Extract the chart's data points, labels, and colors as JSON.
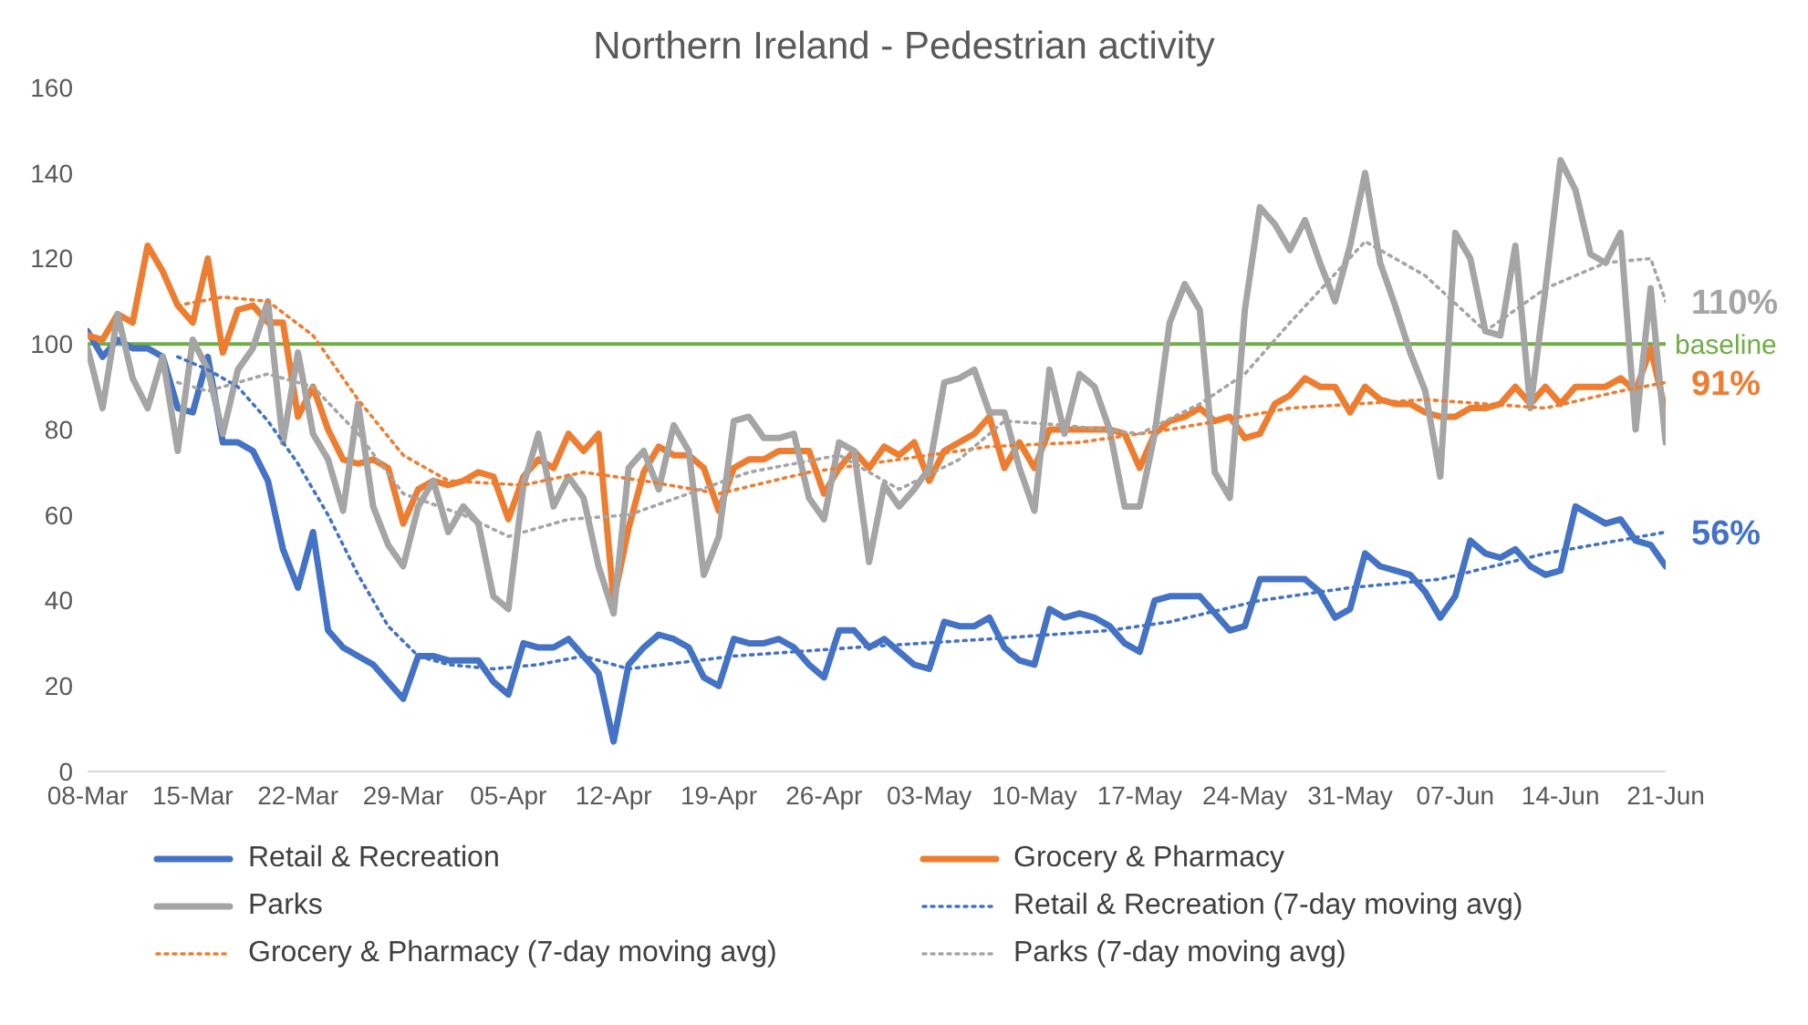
{
  "chart_data": {
    "type": "line",
    "title": "Northern Ireland - Pedestrian activity",
    "legend": "bottom",
    "marker": "none",
    "grid": false,
    "x": [
      "--03-08",
      "--03-09",
      "--03-10",
      "--03-11",
      "--03-12",
      "--03-13",
      "--03-14",
      "--03-15",
      "--03-16",
      "--03-17",
      "--03-18",
      "--03-19",
      "--03-20",
      "--03-21",
      "--03-22",
      "--03-23",
      "--03-24",
      "--03-25",
      "--03-26",
      "--03-27",
      "--03-28",
      "--03-29",
      "--03-30",
      "--03-31",
      "--04-01",
      "--04-02",
      "--04-03",
      "--04-04",
      "--04-05",
      "--04-06",
      "--04-07",
      "--04-08",
      "--04-09",
      "--04-10",
      "--04-11",
      "--04-12",
      "--04-13",
      "--04-14",
      "--04-15",
      "--04-16",
      "--04-17",
      "--04-18",
      "--04-19",
      "--04-20",
      "--04-21",
      "--04-22",
      "--04-23",
      "--04-24",
      "--04-25",
      "--04-26",
      "--04-27",
      "--04-28",
      "--04-29",
      "--04-30",
      "--05-01",
      "--05-02",
      "--05-03",
      "--05-04",
      "--05-05",
      "--05-06",
      "--05-07",
      "--05-08",
      "--05-09",
      "--05-10",
      "--05-11",
      "--05-12",
      "--05-13",
      "--05-14",
      "--05-15",
      "--05-16",
      "--05-17",
      "--05-18",
      "--05-19",
      "--05-20",
      "--05-21",
      "--05-22",
      "--05-23",
      "--05-24",
      "--05-25",
      "--05-26",
      "--05-27",
      "--05-28",
      "--05-29",
      "--05-30",
      "--05-31",
      "--06-01",
      "--06-02",
      "--06-03",
      "--06-04",
      "--06-05",
      "--06-06",
      "--06-07",
      "--06-08",
      "--06-09",
      "--06-10",
      "--06-11",
      "--06-12",
      "--06-13",
      "--06-14",
      "--06-15",
      "--06-16",
      "--06-17",
      "--06-18",
      "--06-19",
      "--06-20",
      "--06-21"
    ],
    "xlim": [
      "--03-08",
      "--06-21"
    ],
    "xticks": [
      {
        "value": "--03-08",
        "label": "08-Mar"
      },
      {
        "value": "--03-15",
        "label": "15-Mar"
      },
      {
        "value": "--03-22",
        "label": "22-Mar"
      },
      {
        "value": "--03-29",
        "label": "29-Mar"
      },
      {
        "value": "--04-05",
        "label": "05-Apr"
      },
      {
        "value": "--04-12",
        "label": "12-Apr"
      },
      {
        "value": "--04-19",
        "label": "19-Apr"
      },
      {
        "value": "--04-26",
        "label": "26-Apr"
      },
      {
        "value": "--05-03",
        "label": "03-May"
      },
      {
        "value": "--05-10",
        "label": "10-May"
      },
      {
        "value": "--05-17",
        "label": "17-May"
      },
      {
        "value": "--05-24",
        "label": "24-May"
      },
      {
        "value": "--05-31",
        "label": "31-May"
      },
      {
        "value": "--06-07",
        "label": "07-Jun"
      },
      {
        "value": "--06-14",
        "label": "14-Jun"
      },
      {
        "value": "--06-21",
        "label": "21-Jun"
      }
    ],
    "ylim": [
      0,
      160
    ],
    "yticks": [
      0,
      20,
      40,
      60,
      80,
      100,
      120,
      140,
      160
    ],
    "series": [
      {
        "name": "Retail & Recreation",
        "color": "#4472c4",
        "line_style": "solid",
        "values": [
          103,
          97,
          101,
          99,
          99,
          97,
          85,
          84,
          97,
          77,
          77,
          75,
          68,
          52,
          43,
          56,
          33,
          29,
          27,
          25,
          21,
          17,
          27,
          27,
          26,
          26,
          26,
          21,
          18,
          30,
          29,
          29,
          31,
          27,
          23,
          7,
          25,
          29,
          32,
          31,
          29,
          22,
          20,
          31,
          30,
          30,
          31,
          29,
          25,
          22,
          33,
          33,
          29,
          31,
          28,
          25,
          24,
          35,
          34,
          34,
          36,
          29,
          26,
          25,
          38,
          36,
          37,
          36,
          34,
          30,
          28,
          40,
          41,
          41,
          41,
          37,
          33,
          34,
          45,
          45,
          45,
          45,
          42,
          36,
          38,
          51,
          48,
          47,
          46,
          42,
          36,
          41,
          54,
          51,
          50,
          52,
          48,
          46,
          47,
          62,
          60,
          58,
          59,
          54,
          53,
          48
        ]
      },
      {
        "name": "Grocery & Pharmacy",
        "color": "#ed7d31",
        "line_style": "solid",
        "values": [
          102,
          101,
          107,
          105,
          123,
          117,
          109,
          105,
          120,
          98,
          108,
          109,
          105,
          105,
          83,
          90,
          80,
          73,
          72,
          73,
          71,
          58,
          66,
          68,
          67,
          68,
          70,
          69,
          59,
          69,
          73,
          71,
          79,
          75,
          79,
          40,
          57,
          70,
          76,
          74,
          74,
          71,
          61,
          71,
          73,
          73,
          75,
          75,
          75,
          65,
          71,
          75,
          71,
          76,
          74,
          77,
          68,
          75,
          77,
          79,
          83,
          71,
          77,
          71,
          80,
          80,
          80,
          80,
          80,
          79,
          71,
          79,
          82,
          83,
          85,
          82,
          83,
          78,
          79,
          86,
          88,
          92,
          90,
          90,
          84,
          90,
          87,
          86,
          86,
          84,
          83,
          83,
          85,
          85,
          86,
          90,
          86,
          90,
          86,
          90,
          90,
          90,
          92,
          89,
          99,
          84
        ]
      },
      {
        "name": "Parks",
        "color": "#a5a5a5",
        "line_style": "solid",
        "values": [
          99,
          85,
          107,
          92,
          85,
          97,
          75,
          101,
          94,
          79,
          94,
          99,
          110,
          77,
          98,
          79,
          73,
          61,
          86,
          62,
          53,
          48,
          62,
          68,
          56,
          62,
          58,
          41,
          38,
          67,
          79,
          62,
          69,
          64,
          48,
          37,
          71,
          75,
          66,
          81,
          75,
          46,
          55,
          82,
          83,
          78,
          78,
          79,
          64,
          59,
          77,
          75,
          49,
          67,
          62,
          66,
          71,
          91,
          92,
          94,
          84,
          84,
          71,
          61,
          94,
          79,
          93,
          90,
          80,
          62,
          62,
          79,
          105,
          114,
          108,
          70,
          64,
          108,
          132,
          128,
          122,
          129,
          119,
          110,
          123,
          140,
          119,
          109,
          98,
          89,
          69,
          126,
          120,
          103,
          102,
          123,
          85,
          113,
          143,
          136,
          121,
          119,
          126,
          80,
          113,
          77
        ]
      },
      {
        "name": "Retail & Recreation (7-day moving avg)",
        "color": "#4472c4",
        "line_style": "dotted",
        "x": [
          "--03-14",
          "--03-16",
          "--03-18",
          "--03-20",
          "--03-22",
          "--03-24",
          "--03-26",
          "--03-28",
          "--03-30",
          "--04-01",
          "--04-04",
          "--04-07",
          "--04-10",
          "--04-13",
          "--04-20",
          "--04-28",
          "--05-07",
          "--05-15",
          "--05-19",
          "--05-25",
          "--05-31",
          "--06-06",
          "--06-13",
          "--06-21"
        ],
        "values": [
          97,
          94,
          90,
          82,
          72,
          60,
          46,
          34,
          27,
          25,
          24,
          25,
          27,
          24,
          27,
          29,
          31,
          33,
          35,
          40,
          43,
          45,
          51,
          56
        ]
      },
      {
        "name": "Grocery & Pharmacy (7-day moving avg)",
        "color": "#ed7d31",
        "line_style": "dotted",
        "x": [
          "--03-14",
          "--03-17",
          "--03-20",
          "--03-23",
          "--03-26",
          "--03-29",
          "--04-01",
          "--04-06",
          "--04-10",
          "--04-14",
          "--04-19",
          "--04-25",
          "--05-01",
          "--05-07",
          "--05-13",
          "--05-19",
          "--05-27",
          "--06-05",
          "--06-13",
          "--06-18",
          "--06-21"
        ],
        "values": [
          109,
          111,
          110,
          102,
          87,
          74,
          68,
          67,
          70,
          68,
          65,
          70,
          73,
          76,
          77,
          80,
          85,
          87,
          85,
          89,
          91
        ]
      },
      {
        "name": "Parks (7-day moving avg)",
        "color": "#a5a5a5",
        "line_style": "dotted",
        "x": [
          "--03-14",
          "--03-16",
          "--03-20",
          "--03-23",
          "--03-26",
          "--03-29",
          "--04-02",
          "--04-05",
          "--04-09",
          "--04-13",
          "--04-17",
          "--04-21",
          "--04-27",
          "--05-01",
          "--05-05",
          "--05-08",
          "--05-12",
          "--05-17",
          "--05-21",
          "--05-24",
          "--05-27",
          "--06-01",
          "--06-05",
          "--06-09",
          "--06-13",
          "--06-17",
          "--06-20",
          "--06-21"
        ],
        "values": [
          91,
          89,
          93,
          90,
          79,
          65,
          60,
          55,
          59,
          60,
          65,
          70,
          74,
          66,
          73,
          82,
          81,
          79,
          86,
          93,
          105,
          124,
          116,
          103,
          113,
          119,
          120,
          110
        ]
      }
    ],
    "ref_lines": [
      {
        "axis": "y",
        "value": 100,
        "label": "baseline",
        "color": "#70ad47"
      }
    ],
    "annotations": [
      {
        "text": "110%",
        "x": "--06-21",
        "y": 110
      },
      {
        "text": "91%",
        "x": "--06-21",
        "y": 91
      },
      {
        "text": "56%",
        "x": "--06-21",
        "y": 56
      }
    ]
  }
}
